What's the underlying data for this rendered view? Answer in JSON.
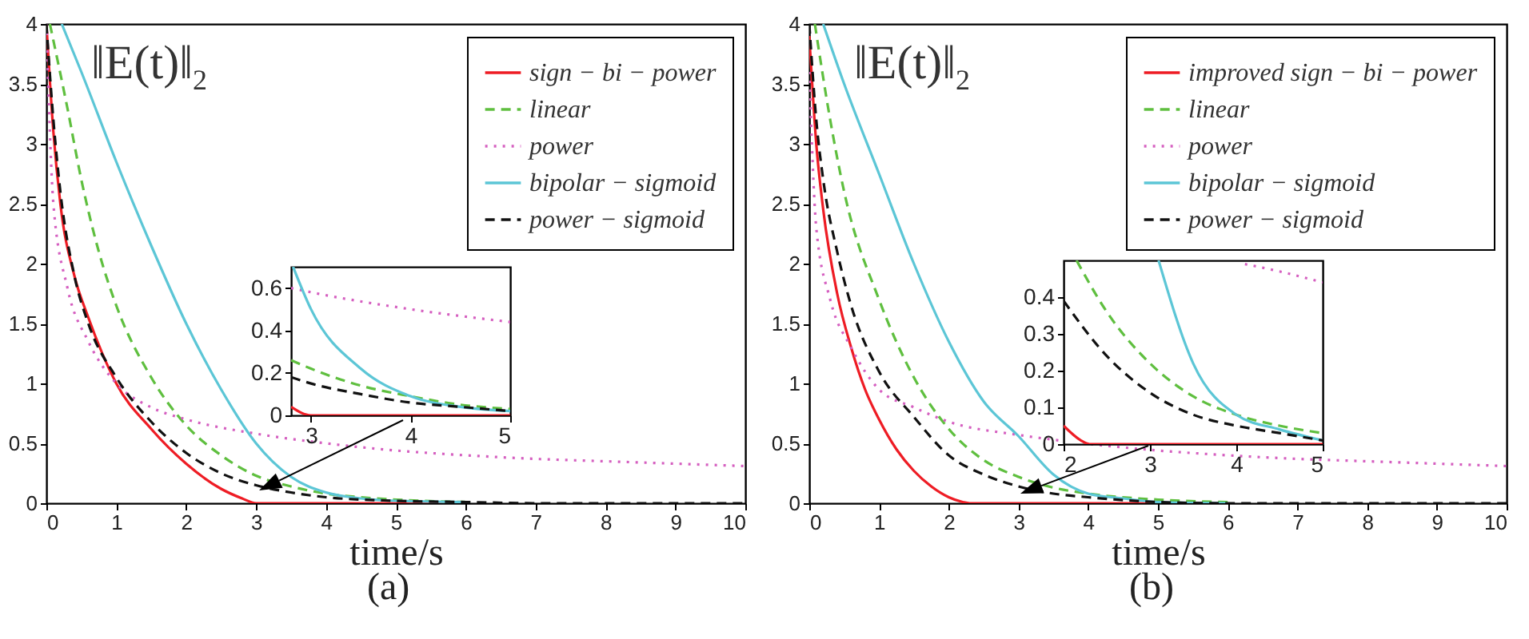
{
  "chart_data": [
    {
      "type": "line",
      "xlabel": "time/s",
      "xlim": [
        0,
        10
      ],
      "xticks": [
        0,
        1,
        2,
        3,
        4,
        5,
        6,
        7,
        8,
        9,
        10
      ],
      "ylim": [
        0,
        4
      ],
      "yticks": [
        0,
        0.5,
        1,
        1.5,
        2,
        2.5,
        3,
        3.5,
        4
      ],
      "legend": "top right",
      "annotations": [
        "‖E(t)‖$_{2}$",
        "(a)"
      ],
      "series": [
        {
          "name": "sign − bi − power",
          "color": "#ee1c24",
          "line_style": "solid",
          "x": [
            0,
            0.1,
            0.2,
            0.4,
            0.6,
            0.8,
            1,
            1.5,
            2,
            2.5,
            2.8,
            3,
            4,
            5,
            6
          ],
          "values": [
            4,
            3.1,
            2.5,
            1.9,
            1.55,
            1.25,
            1,
            0.62,
            0.33,
            0.12,
            0.04,
            0,
            0,
            0,
            0
          ]
        },
        {
          "name": "linear",
          "color": "#5fbf3f",
          "line_style": "dashed",
          "x": [
            0.05,
            0.3,
            0.5,
            0.75,
            1,
            1.5,
            2,
            2.5,
            3,
            3.5,
            4,
            4.5,
            5,
            6
          ],
          "values": [
            4,
            3.3,
            2.7,
            2.1,
            1.65,
            1.05,
            0.65,
            0.4,
            0.23,
            0.14,
            0.08,
            0.05,
            0.03,
            0.01
          ]
        },
        {
          "name": "power",
          "color": "#d55fc0",
          "line_style": "dotted",
          "x": [
            0,
            0.1,
            0.3,
            0.6,
            1,
            1.5,
            2,
            3,
            4,
            5,
            6,
            7,
            8,
            9,
            10
          ],
          "values": [
            4,
            2.5,
            1.8,
            1.35,
            1,
            0.8,
            0.7,
            0.58,
            0.5,
            0.44,
            0.4,
            0.37,
            0.35,
            0.33,
            0.31
          ]
        },
        {
          "name": "bipolar − sigmoid",
          "color": "#5cc6d6",
          "line_style": "solid",
          "x": [
            0.22,
            0.5,
            1,
            1.5,
            2,
            2.5,
            3,
            3.5,
            4,
            4.5,
            5,
            6
          ],
          "values": [
            4,
            3.6,
            2.85,
            2.15,
            1.5,
            0.95,
            0.5,
            0.22,
            0.09,
            0.04,
            0.02,
            0.01
          ]
        },
        {
          "name": "power − sigmoid",
          "color": "#111111",
          "line_style": "dashed",
          "x": [
            0,
            0.1,
            0.2,
            0.4,
            0.6,
            1,
            1.5,
            2,
            2.5,
            3,
            3.5,
            4,
            5,
            6,
            7,
            8,
            9,
            10
          ],
          "values": [
            4,
            3.2,
            2.6,
            1.9,
            1.5,
            1.05,
            0.68,
            0.42,
            0.25,
            0.15,
            0.09,
            0.05,
            0.02,
            0.01,
            0,
            0,
            0,
            0
          ]
        }
      ]
    },
    {
      "type": "line",
      "xlim": [
        2.8,
        5
      ],
      "xticks": [
        3,
        4,
        5
      ],
      "ylim": [
        0,
        0.7
      ],
      "yticks": [
        0,
        0.2,
        0.4,
        0.6
      ],
      "series": [
        {
          "color": "#ee1c24",
          "line_style": "solid",
          "x": [
            2.8,
            3,
            4,
            5
          ],
          "values": [
            0.04,
            0,
            0,
            0
          ]
        },
        {
          "color": "#5fbf3f",
          "line_style": "dashed",
          "x": [
            2.8,
            3,
            3.5,
            4,
            4.5,
            5
          ],
          "values": [
            0.26,
            0.22,
            0.14,
            0.09,
            0.05,
            0.03
          ]
        },
        {
          "color": "#d55fc0",
          "line_style": "dotted",
          "x": [
            2.8,
            3,
            4,
            5
          ],
          "values": [
            0.6,
            0.58,
            0.5,
            0.44
          ]
        },
        {
          "color": "#5cc6d6",
          "line_style": "solid",
          "x": [
            2.82,
            3,
            3.5,
            4,
            4.5,
            5
          ],
          "values": [
            0.7,
            0.5,
            0.22,
            0.09,
            0.04,
            0.02
          ]
        },
        {
          "color": "#111111",
          "line_style": "dashed",
          "x": [
            2.8,
            3,
            3.5,
            4,
            4.5,
            5
          ],
          "values": [
            0.18,
            0.15,
            0.1,
            0.06,
            0.04,
            0.02
          ]
        }
      ]
    },
    {
      "type": "line",
      "xlabel": "time/s",
      "xlim": [
        0,
        10
      ],
      "xticks": [
        0,
        1,
        2,
        3,
        4,
        5,
        6,
        7,
        8,
        9,
        10
      ],
      "ylim": [
        0,
        4
      ],
      "yticks": [
        0,
        0.5,
        1,
        1.5,
        2,
        2.5,
        3,
        3.5,
        4
      ],
      "legend": "top right",
      "annotations": [
        "‖E(t)‖$_{2}$",
        "(b)"
      ],
      "series": [
        {
          "name": "improved sign − bi − power",
          "color": "#ee1c24",
          "line_style": "solid",
          "x": [
            0,
            0.1,
            0.2,
            0.4,
            0.6,
            0.8,
            1,
            1.25,
            1.5,
            1.75,
            2,
            2.2,
            2.3,
            3,
            4,
            5,
            6
          ],
          "values": [
            3.9,
            3,
            2.45,
            1.75,
            1.3,
            0.95,
            0.7,
            0.45,
            0.27,
            0.14,
            0.05,
            0.01,
            0,
            0,
            0,
            0,
            0
          ]
        },
        {
          "name": "linear",
          "color": "#5fbf3f",
          "line_style": "dashed",
          "x": [
            0.08,
            0.3,
            0.5,
            1,
            1.5,
            2,
            2.5,
            3,
            3.5,
            4,
            5,
            6
          ],
          "values": [
            4,
            3.2,
            2.6,
            1.7,
            1.05,
            0.62,
            0.36,
            0.22,
            0.13,
            0.08,
            0.03,
            0.01
          ]
        },
        {
          "name": "power",
          "color": "#d55fc0",
          "line_style": "dotted",
          "x": [
            0,
            0.1,
            0.3,
            0.6,
            1,
            1.5,
            2,
            3,
            3.5,
            5,
            6,
            7,
            8,
            9,
            10
          ],
          "values": [
            3.6,
            2.3,
            1.7,
            1.3,
            0.95,
            0.8,
            0.68,
            0.57,
            0.53,
            0.44,
            0.4,
            0.37,
            0.35,
            0.33,
            0.31
          ]
        },
        {
          "name": "bipolar − sigmoid",
          "color": "#5cc6d6",
          "line_style": "solid",
          "x": [
            0.2,
            0.5,
            1,
            1.5,
            2,
            2.5,
            3,
            3.5,
            4,
            4.5,
            5,
            6
          ],
          "values": [
            4,
            3.5,
            2.75,
            2,
            1.35,
            0.85,
            0.56,
            0.24,
            0.08,
            0.04,
            0.01,
            0
          ]
        },
        {
          "name": "power − sigmoid",
          "color": "#111111",
          "line_style": "dashed",
          "x": [
            0,
            0.1,
            0.2,
            0.4,
            0.6,
            1,
            1.5,
            2,
            2.5,
            3,
            3.5,
            4,
            5,
            6,
            7,
            8,
            9,
            10
          ],
          "values": [
            4,
            3.2,
            2.7,
            2.1,
            1.65,
            1.1,
            0.72,
            0.4,
            0.24,
            0.14,
            0.08,
            0.05,
            0.01,
            0,
            0,
            0,
            0,
            0
          ]
        }
      ]
    },
    {
      "type": "line",
      "xlim": [
        2,
        5
      ],
      "xticks": [
        2,
        3,
        4,
        5
      ],
      "ylim": [
        0,
        0.5
      ],
      "yticks": [
        0,
        0.1,
        0.2,
        0.3,
        0.4
      ],
      "series": [
        {
          "color": "#ee1c24",
          "line_style": "solid",
          "x": [
            2,
            2.2,
            2.3,
            5
          ],
          "values": [
            0.05,
            0.01,
            0,
            0
          ]
        },
        {
          "color": "#5fbf3f",
          "line_style": "dashed",
          "x": [
            2.15,
            2.5,
            3,
            3.5,
            4,
            4.5,
            5
          ],
          "values": [
            0.5,
            0.36,
            0.22,
            0.13,
            0.08,
            0.05,
            0.03
          ]
        },
        {
          "color": "#d55fc0",
          "line_style": "dotted",
          "x": [
            4.1,
            4.5,
            5
          ],
          "values": [
            0.49,
            0.47,
            0.44
          ]
        },
        {
          "color": "#5cc6d6",
          "line_style": "solid",
          "x": [
            3.1,
            3.5,
            4,
            4.5,
            5
          ],
          "values": [
            0.5,
            0.22,
            0.08,
            0.04,
            0.01
          ]
        },
        {
          "color": "#111111",
          "line_style": "dashed",
          "x": [
            2,
            2.5,
            3,
            3.5,
            4,
            4.5,
            5
          ],
          "values": [
            0.39,
            0.24,
            0.14,
            0.08,
            0.05,
            0.03,
            0.01
          ]
        }
      ]
    }
  ]
}
